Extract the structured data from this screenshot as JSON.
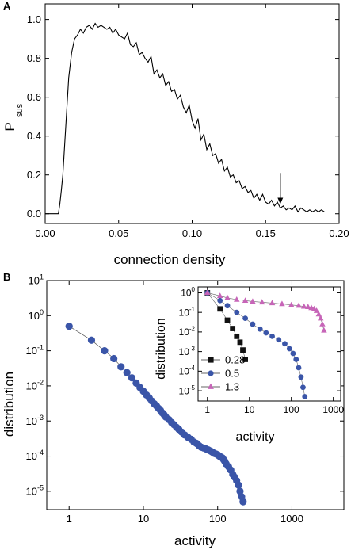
{
  "panels": {
    "A": {
      "letter": "A"
    },
    "B": {
      "letter": "B"
    }
  },
  "chart_data": [
    {
      "type": "line",
      "panel": "A",
      "xlabel": "connection density",
      "ylabel": "P",
      "ylabel_sub": "sus",
      "xlim": [
        0.0,
        0.2
      ],
      "ylim": [
        -0.05,
        1.08
      ],
      "xticks": [
        "0.00",
        "0.05",
        "0.10",
        "0.15",
        "0.20"
      ],
      "yticks": [
        "0.0",
        "0.2",
        "0.4",
        "0.6",
        "0.8",
        "1.0"
      ],
      "arrow_at": {
        "x": 0.16,
        "y_from": 0.21,
        "y_to": 0.05
      },
      "color": "#000000",
      "series": [
        {
          "x": [
            0.0,
            0.009,
            0.01,
            0.011,
            0.012,
            0.014,
            0.016,
            0.018,
            0.02,
            0.022,
            0.024,
            0.026,
            0.028,
            0.03,
            0.032,
            0.034,
            0.036,
            0.038,
            0.04,
            0.042,
            0.044,
            0.046,
            0.048,
            0.05,
            0.052,
            0.054,
            0.056,
            0.058,
            0.06,
            0.062,
            0.064,
            0.066,
            0.068,
            0.07,
            0.072,
            0.074,
            0.076,
            0.078,
            0.08,
            0.082,
            0.084,
            0.086,
            0.088,
            0.09,
            0.092,
            0.094,
            0.096,
            0.098,
            0.1,
            0.102,
            0.104,
            0.106,
            0.108,
            0.11,
            0.112,
            0.114,
            0.116,
            0.118,
            0.12,
            0.122,
            0.124,
            0.126,
            0.128,
            0.13,
            0.132,
            0.134,
            0.136,
            0.138,
            0.14,
            0.142,
            0.144,
            0.146,
            0.148,
            0.15,
            0.152,
            0.154,
            0.156,
            0.158,
            0.16,
            0.162,
            0.164,
            0.166,
            0.168,
            0.17,
            0.172,
            0.174,
            0.176,
            0.178,
            0.18,
            0.182,
            0.184,
            0.186,
            0.188,
            0.19
          ],
          "y": [
            0.0,
            0.0,
            0.05,
            0.12,
            0.2,
            0.45,
            0.7,
            0.83,
            0.9,
            0.92,
            0.95,
            0.93,
            0.96,
            0.97,
            0.95,
            0.98,
            0.96,
            0.97,
            0.96,
            0.95,
            0.96,
            0.93,
            0.95,
            0.92,
            0.91,
            0.9,
            0.93,
            0.87,
            0.86,
            0.88,
            0.82,
            0.83,
            0.8,
            0.78,
            0.81,
            0.72,
            0.74,
            0.7,
            0.72,
            0.66,
            0.68,
            0.63,
            0.64,
            0.59,
            0.61,
            0.55,
            0.52,
            0.56,
            0.48,
            0.44,
            0.49,
            0.38,
            0.41,
            0.33,
            0.36,
            0.3,
            0.31,
            0.26,
            0.28,
            0.22,
            0.24,
            0.19,
            0.2,
            0.16,
            0.17,
            0.13,
            0.14,
            0.11,
            0.12,
            0.08,
            0.1,
            0.07,
            0.1,
            0.06,
            0.05,
            0.07,
            0.04,
            0.06,
            0.03,
            0.04,
            0.02,
            0.03,
            0.02,
            0.04,
            0.01,
            0.03,
            0.02,
            0.01,
            0.02,
            0.01,
            0.02,
            0.01,
            0.02,
            0.01
          ]
        }
      ]
    },
    {
      "type": "scatter",
      "panel": "B",
      "xlabel": "activity",
      "ylabel": "distribution",
      "xscale": "log",
      "yscale": "log",
      "xlim": [
        0.5,
        5000
      ],
      "ylim": [
        3e-06,
        10
      ],
      "xticks": [
        {
          "v": 1,
          "label": "1"
        },
        {
          "v": 10,
          "label": "10"
        },
        {
          "v": 100,
          "label": "100"
        },
        {
          "v": 1000,
          "label": "1000"
        }
      ],
      "yticks": [
        {
          "v": 10,
          "base": "10",
          "exp": "1"
        },
        {
          "v": 1,
          "base": "10",
          "exp": "0"
        },
        {
          "v": 0.1,
          "base": "10",
          "exp": "-1"
        },
        {
          "v": 0.01,
          "base": "10",
          "exp": "-2"
        },
        {
          "v": 0.001,
          "base": "10",
          "exp": "-3"
        },
        {
          "v": 0.0001,
          "base": "10",
          "exp": "-4"
        },
        {
          "v": 1e-05,
          "base": "10",
          "exp": "-5"
        }
      ],
      "color": "#3a55a8",
      "series": [
        {
          "x": [
            1,
            2,
            3,
            4,
            5,
            6,
            7,
            8,
            9,
            10,
            11,
            12,
            13,
            14,
            15,
            16,
            17,
            18,
            19,
            20,
            22,
            24,
            26,
            28,
            30,
            33,
            36,
            40,
            44,
            48,
            52,
            56,
            60,
            65,
            70,
            75,
            80,
            85,
            90,
            95,
            100,
            105,
            110,
            115,
            120,
            125,
            130,
            140,
            150,
            160,
            170,
            180,
            190,
            200,
            210,
            220
          ],
          "y": [
            0.5,
            0.2,
            0.1,
            0.06,
            0.035,
            0.024,
            0.017,
            0.012,
            0.009,
            0.007,
            0.0055,
            0.0045,
            0.0037,
            0.0031,
            0.0027,
            0.0023,
            0.002,
            0.0017,
            0.0015,
            0.0013,
            0.0011,
            0.0009,
            0.00078,
            0.00066,
            0.00058,
            0.00048,
            0.0004,
            0.00034,
            0.0003,
            0.00025,
            0.00023,
            0.0002,
            0.00018,
            0.00017,
            0.00016,
            0.00015,
            0.00014,
            0.00013,
            0.00012,
            0.000115,
            0.00011,
            0.0001,
            9.5e-05,
            9e-05,
            8e-05,
            7e-05,
            6e-05,
            5e-05,
            4e-05,
            3e-05,
            2.5e-05,
            2e-05,
            1.5e-05,
            1e-05,
            7e-06,
            5e-06
          ]
        }
      ]
    },
    {
      "type": "scatter",
      "panel": "B-inset",
      "xlabel": "activity",
      "ylabel": "distribution",
      "xscale": "log",
      "yscale": "log",
      "xlim": [
        0.6,
        1500
      ],
      "ylim": [
        3e-06,
        2
      ],
      "xticks": [
        {
          "v": 1,
          "label": "1"
        },
        {
          "v": 10,
          "label": "10"
        },
        {
          "v": 100,
          "label": "100"
        },
        {
          "v": 1000,
          "label": "1000"
        }
      ],
      "yticks": [
        {
          "v": 1,
          "base": "10",
          "exp": "0"
        },
        {
          "v": 0.1,
          "base": "10",
          "exp": "-1"
        },
        {
          "v": 0.01,
          "base": "10",
          "exp": "-2"
        },
        {
          "v": 0.001,
          "base": "10",
          "exp": "-3"
        },
        {
          "v": 0.0001,
          "base": "10",
          "exp": "-4"
        },
        {
          "v": 1e-05,
          "base": "10",
          "exp": "-5"
        }
      ],
      "legend_position": "bottom-left",
      "series": [
        {
          "name": "0.28",
          "marker": "square",
          "color": "#111111",
          "x": [
            1,
            2,
            3,
            4,
            5,
            6,
            7,
            8
          ],
          "y": [
            1.0,
            0.15,
            0.04,
            0.015,
            0.006,
            0.003,
            0.0012,
            0.0004
          ]
        },
        {
          "name": "0.5",
          "marker": "circle",
          "color": "#3a55a8",
          "x": [
            1,
            2,
            3,
            5,
            8,
            12,
            18,
            25,
            35,
            50,
            70,
            90,
            110,
            130,
            150,
            170,
            190,
            210
          ],
          "y": [
            1.0,
            0.4,
            0.22,
            0.1,
            0.05,
            0.025,
            0.014,
            0.009,
            0.006,
            0.004,
            0.0025,
            0.0014,
            0.0008,
            0.0004,
            0.00015,
            5e-05,
            1.5e-05,
            5e-06
          ]
        },
        {
          "name": "1.3",
          "marker": "triangle",
          "color": "#c765b8",
          "x": [
            1,
            2,
            3,
            5,
            8,
            12,
            20,
            35,
            60,
            100,
            150,
            200,
            250,
            300,
            350,
            400,
            450,
            500,
            550,
            600
          ],
          "y": [
            1.0,
            0.7,
            0.55,
            0.45,
            0.4,
            0.36,
            0.33,
            0.3,
            0.27,
            0.24,
            0.22,
            0.2,
            0.19,
            0.17,
            0.15,
            0.12,
            0.08,
            0.05,
            0.025,
            0.012
          ]
        }
      ]
    }
  ]
}
